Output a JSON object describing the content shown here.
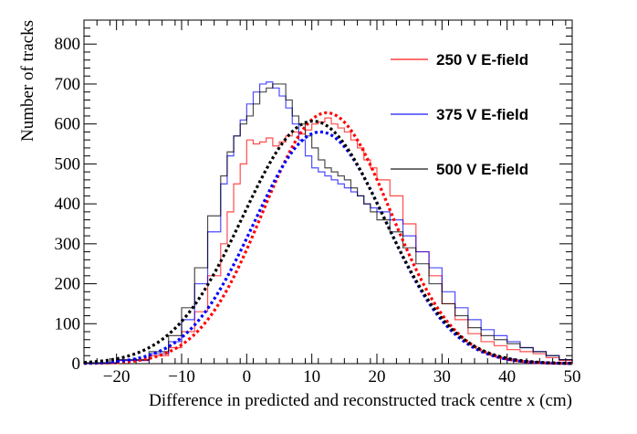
{
  "chart_data": {
    "type": "line",
    "title": "",
    "xlabel": "Difference in predicted and reconstructed track centre x (cm)",
    "ylabel": "Number of tracks",
    "xlim": [
      -25,
      50
    ],
    "ylim": [
      0,
      860
    ],
    "x_ticks": [
      -20,
      -10,
      0,
      10,
      20,
      30,
      40,
      50
    ],
    "y_ticks": [
      0,
      100,
      200,
      300,
      400,
      500,
      600,
      700,
      800
    ],
    "x_tick_labels": [
      "−20",
      "−10",
      "0",
      "10",
      "20",
      "30",
      "40",
      "50"
    ],
    "y_tick_labels": [
      "0",
      "100",
      "200",
      "300",
      "400",
      "500",
      "600",
      "700",
      "800"
    ],
    "legend_position": "top-right",
    "colors": {
      "250": "#ff0000",
      "375": "#0000ff",
      "500": "#000000"
    },
    "bin_edges": [
      -25,
      -20,
      -15,
      -12,
      -10,
      -8,
      -6,
      -4,
      -3,
      -2,
      -1,
      0,
      1,
      2,
      3,
      4,
      5,
      6,
      7,
      8,
      9,
      10,
      11,
      12,
      13,
      14,
      15,
      16,
      17,
      18,
      19,
      20,
      22,
      24,
      26,
      28,
      30,
      32,
      34,
      36,
      38,
      40,
      42,
      44,
      46,
      48,
      50
    ],
    "series": [
      {
        "name": "250 V E-field",
        "color": "#ff0000",
        "counts": [
          2,
          8,
          20,
          40,
          80,
          130,
          220,
          300,
          380,
          450,
          500,
          560,
          550,
          555,
          565,
          545,
          555,
          570,
          580,
          575,
          585,
          600,
          605,
          615,
          600,
          590,
          580,
          560,
          540,
          510,
          490,
          460,
          420,
          350,
          280,
          220,
          150,
          110,
          75,
          55,
          45,
          35,
          30,
          25,
          15,
          8
        ],
        "fit": {
          "mean": 12.3,
          "sigma": 9.8,
          "amplitude": 628
        }
      },
      {
        "name": "375 V E-field",
        "color": "#0000ff",
        "counts": [
          2,
          8,
          25,
          55,
          110,
          200,
          330,
          450,
          520,
          570,
          610,
          650,
          680,
          700,
          705,
          690,
          670,
          640,
          600,
          560,
          520,
          490,
          480,
          470,
          460,
          450,
          440,
          430,
          420,
          400,
          390,
          380,
          360,
          320,
          280,
          240,
          180,
          140,
          110,
          85,
          70,
          55,
          40,
          30,
          20,
          10
        ],
        "fit": {
          "mean": 11.3,
          "sigma": 10.2,
          "amplitude": 580
        }
      },
      {
        "name": "500 V E-field",
        "color": "#000000",
        "counts": [
          2,
          10,
          30,
          70,
          140,
          240,
          370,
          470,
          530,
          570,
          600,
          620,
          650,
          680,
          690,
          700,
          700,
          660,
          620,
          600,
          570,
          540,
          510,
          490,
          480,
          470,
          460,
          440,
          420,
          400,
          380,
          360,
          330,
          290,
          250,
          200,
          150,
          120,
          90,
          70,
          60,
          50,
          40,
          30,
          20,
          10
        ],
        "fit": {
          "mean": 10.2,
          "sigma": 10.8,
          "amplitude": 607
        }
      }
    ]
  }
}
